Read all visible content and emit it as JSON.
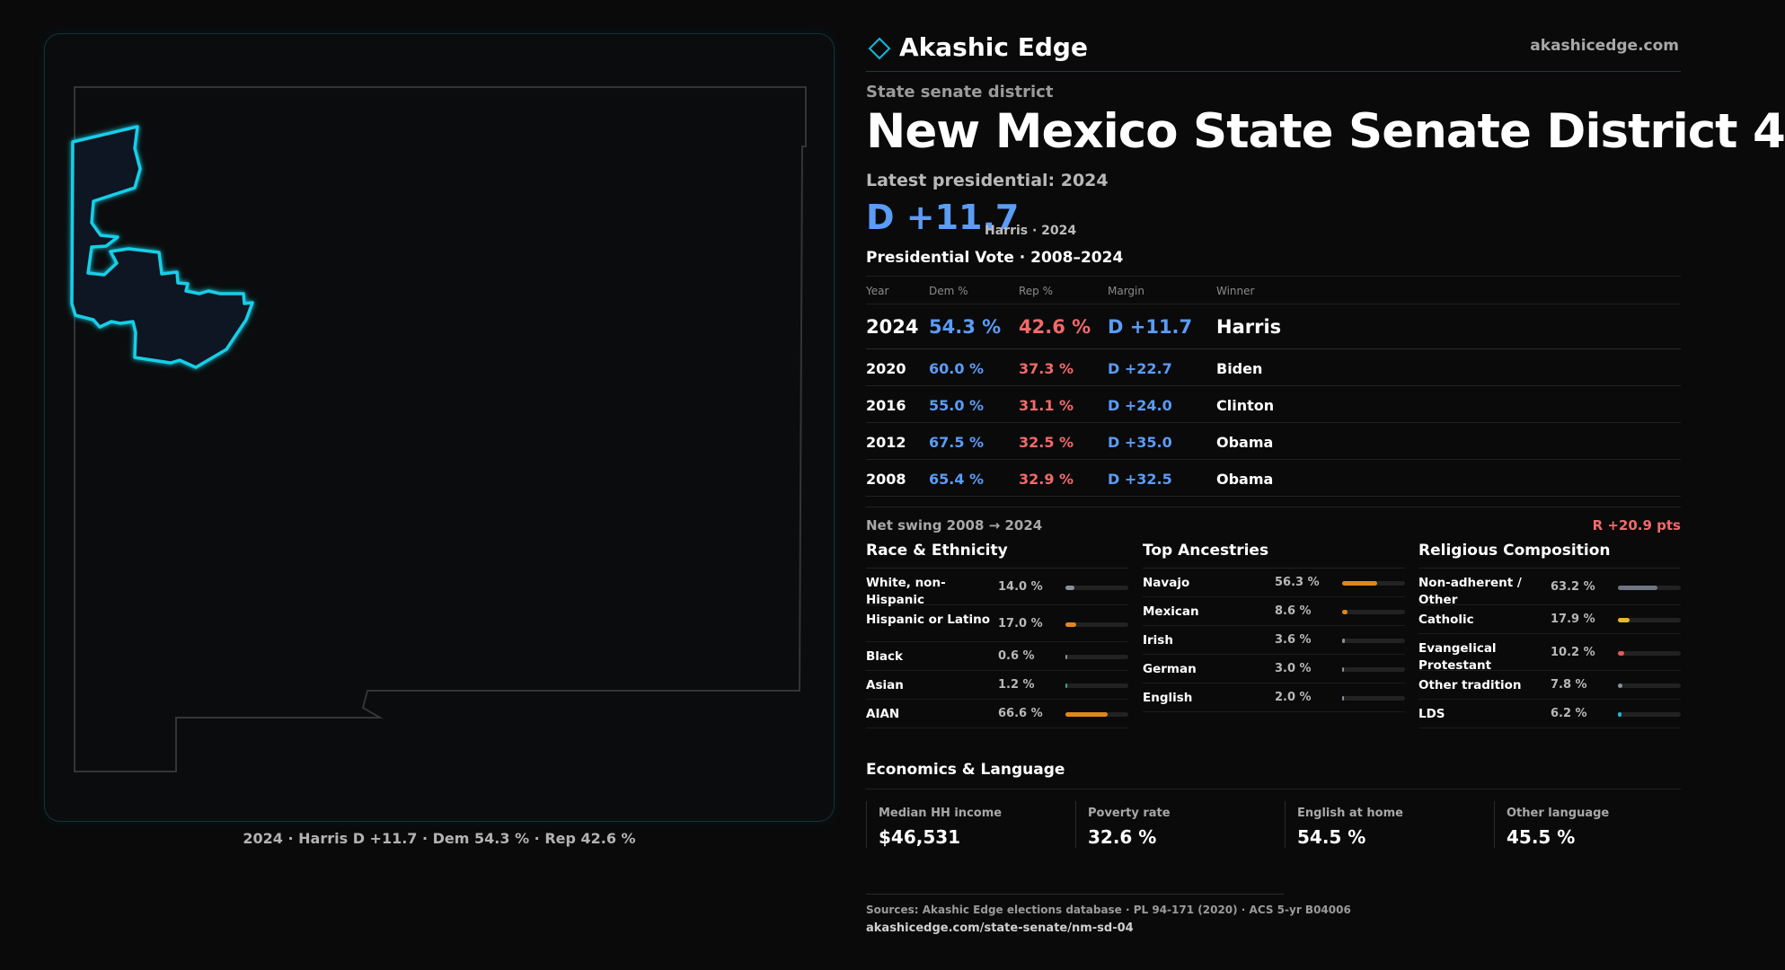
{
  "brand": {
    "name": "Akashic Edge",
    "site": "akashicedge.com",
    "accent": "#14b8d9"
  },
  "header": {
    "kicker": "State senate district",
    "title": "New Mexico State Senate District 4",
    "latest_label": "Latest presidential: 2024",
    "margin": "D +11.7",
    "margin_sub": "Harris · 2024",
    "section_title": "Presidential Vote · 2008–2024"
  },
  "map": {
    "caption": "2024 · Harris D +11.7 · Dem 54.3 % · Rep 42.6 %"
  },
  "vote_table": {
    "headers": [
      "Year",
      "Dem %",
      "Rep %",
      "Margin",
      "Winner"
    ],
    "rows": [
      {
        "year": "2024",
        "dem": "54.3 %",
        "rep": "42.6 %",
        "margin": "D +11.7",
        "winner": "Harris"
      },
      {
        "year": "2020",
        "dem": "60.0 %",
        "rep": "37.3 %",
        "margin": "D +22.7",
        "winner": "Biden"
      },
      {
        "year": "2016",
        "dem": "55.0 %",
        "rep": "31.1 %",
        "margin": "D +24.0",
        "winner": "Clinton"
      },
      {
        "year": "2012",
        "dem": "67.5 %",
        "rep": "32.5 %",
        "margin": "D +35.0",
        "winner": "Obama"
      },
      {
        "year": "2008",
        "dem": "65.4 %",
        "rep": "32.9 %",
        "margin": "D +32.5",
        "winner": "Obama"
      }
    ]
  },
  "swing": {
    "label": "Net swing 2008 → 2024",
    "value": "R +20.9 pts"
  },
  "race": {
    "title": "Race & Ethnicity",
    "items": [
      {
        "label": "White, non-Hispanic",
        "pct": "14.0 %",
        "value": 0.14,
        "color": "#8a9099"
      },
      {
        "label": "Hispanic or Latino",
        "pct": "17.0 %",
        "value": 0.17,
        "color": "#e0871c"
      },
      {
        "label": "Black",
        "pct": "0.6 %",
        "value": 0.006,
        "color": "#8a9099"
      },
      {
        "label": "Asian",
        "pct": "1.2 %",
        "value": 0.012,
        "color": "#2bb07a"
      },
      {
        "label": "AIAN",
        "pct": "66.6 %",
        "value": 0.666,
        "color": "#e0871c"
      }
    ]
  },
  "ancestries": {
    "title": "Top Ancestries",
    "items": [
      {
        "label": "Navajo",
        "pct": "56.3 %",
        "value": 0.563,
        "color": "#e0871c"
      },
      {
        "label": "Mexican",
        "pct": "8.6 %",
        "value": 0.086,
        "color": "#e0871c"
      },
      {
        "label": "Irish",
        "pct": "3.6 %",
        "value": 0.036,
        "color": "#8a9099"
      },
      {
        "label": "German",
        "pct": "3.0 %",
        "value": 0.03,
        "color": "#8a9099"
      },
      {
        "label": "English",
        "pct": "2.0 %",
        "value": 0.02,
        "color": "#8a9099"
      }
    ]
  },
  "religion": {
    "title": "Religious Composition",
    "items": [
      {
        "label": "Non-adherent / Other",
        "pct": "63.2 %",
        "value": 0.632,
        "color": "#6f7682"
      },
      {
        "label": "Catholic",
        "pct": "17.9 %",
        "value": 0.179,
        "color": "#e8b923"
      },
      {
        "label": "Evangelical Protestant",
        "pct": "10.2 %",
        "value": 0.102,
        "color": "#e05a5a"
      },
      {
        "label": "Other tradition",
        "pct": "7.8 %",
        "value": 0.078,
        "color": "#8a9099"
      },
      {
        "label": "LDS",
        "pct": "6.2 %",
        "value": 0.062,
        "color": "#22b8c8"
      }
    ]
  },
  "economics": {
    "title": "Economics & Language",
    "items": [
      {
        "label": "Median HH income",
        "value": "$46,531"
      },
      {
        "label": "Poverty rate",
        "value": "32.6 %"
      },
      {
        "label": "English at home",
        "value": "54.5 %"
      },
      {
        "label": "Other language",
        "value": "45.5 %"
      }
    ]
  },
  "footer": {
    "sources": "Sources: Akashic Edge elections database · PL 94-171 (2020) · ACS 5-yr B04006",
    "url": "akashicedge.com/state-senate/nm-sd-04"
  }
}
